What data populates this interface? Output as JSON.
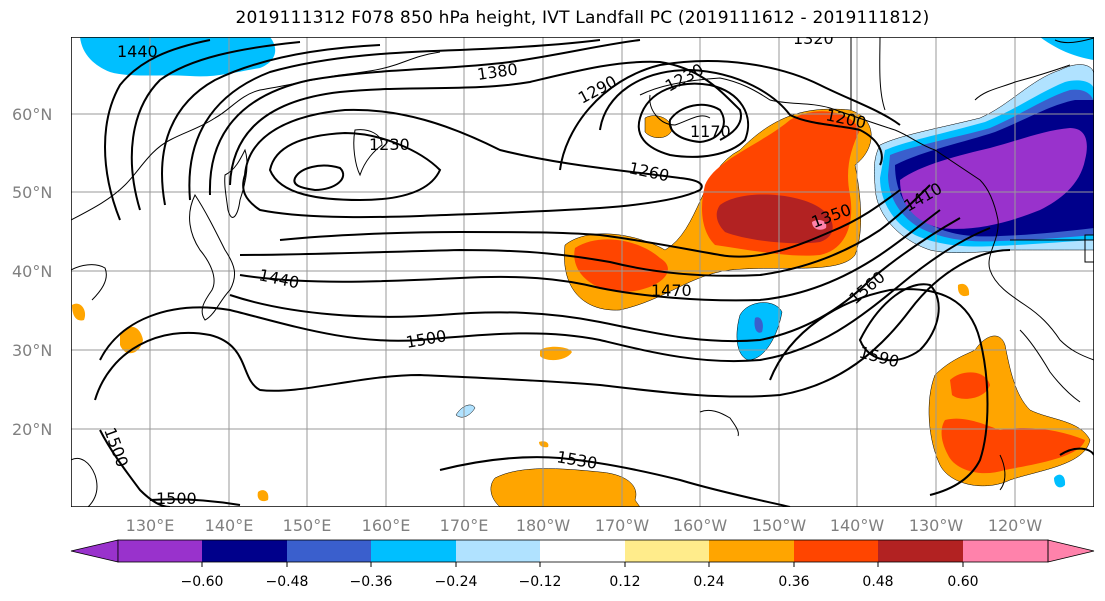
{
  "title": "2019111312 F078 850 hPa height, IVT Landfall PC (2019111612 - 2019111812)",
  "lat_labels": [
    "60°N",
    "50°N",
    "40°N",
    "30°N",
    "20°N"
  ],
  "lon_labels": [
    "130°E",
    "140°E",
    "150°E",
    "160°E",
    "170°E",
    "180°W",
    "170°W",
    "160°W",
    "150°W",
    "140°W",
    "130°W",
    "120°W"
  ],
  "contour_labels": [
    "1440",
    "1380",
    "1290",
    "1230",
    "1320",
    "1230",
    "1170",
    "1200",
    "1260",
    "1350",
    "1410",
    "1440",
    "1470",
    "1500",
    "1560",
    "1590",
    "1500",
    "1530",
    "1500"
  ],
  "colorbar": {
    "ticks": [
      "−0.60",
      "−0.48",
      "−0.36",
      "−0.24",
      "−0.12",
      "0.12",
      "0.24",
      "0.36",
      "0.48",
      "0.60"
    ],
    "colors": [
      "#9932cc",
      "#00008b",
      "#3a5fcd",
      "#00bfff",
      "#b0e2ff",
      "#ffffff",
      "#ffec8b",
      "#ffa500",
      "#ff4500",
      "#b22222",
      "#ff82ab"
    ]
  }
}
